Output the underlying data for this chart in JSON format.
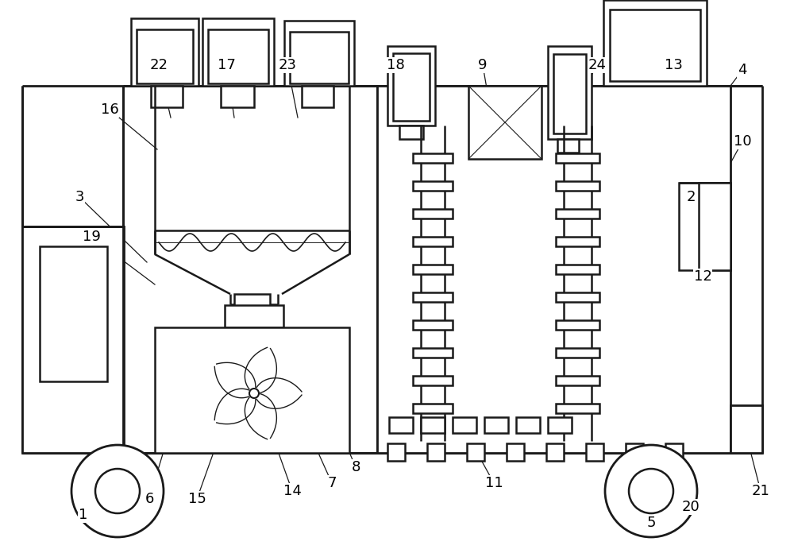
{
  "bg_color": "#ffffff",
  "line_color": "#1a1a1a",
  "line_width": 1.8,
  "figsize": [
    10.0,
    7.01
  ],
  "dpi": 100,
  "annotations": [
    [
      "1",
      105,
      648,
      148,
      618
    ],
    [
      "2",
      870,
      248,
      840,
      325
    ],
    [
      "3",
      100,
      248,
      185,
      330
    ],
    [
      "4",
      935,
      88,
      890,
      148
    ],
    [
      "5",
      820,
      658,
      820,
      618
    ],
    [
      "6",
      188,
      628,
      230,
      488
    ],
    [
      "7",
      418,
      608,
      355,
      468
    ],
    [
      "8",
      448,
      588,
      418,
      518
    ],
    [
      "9",
      608,
      82,
      620,
      152
    ],
    [
      "10",
      935,
      178,
      880,
      278
    ],
    [
      "11",
      622,
      608,
      600,
      568
    ],
    [
      "12",
      885,
      348,
      840,
      378
    ],
    [
      "13",
      848,
      82,
      738,
      148
    ],
    [
      "14",
      368,
      618,
      318,
      478
    ],
    [
      "15",
      248,
      628,
      298,
      488
    ],
    [
      "16",
      138,
      138,
      198,
      188
    ],
    [
      "17",
      285,
      82,
      295,
      148
    ],
    [
      "18",
      498,
      82,
      510,
      148
    ],
    [
      "19",
      115,
      298,
      195,
      358
    ],
    [
      "20",
      870,
      638,
      820,
      588
    ],
    [
      "21",
      958,
      618,
      940,
      548
    ],
    [
      "22",
      200,
      82,
      215,
      148
    ],
    [
      "23",
      362,
      82,
      375,
      148
    ],
    [
      "24",
      752,
      82,
      715,
      148
    ]
  ]
}
